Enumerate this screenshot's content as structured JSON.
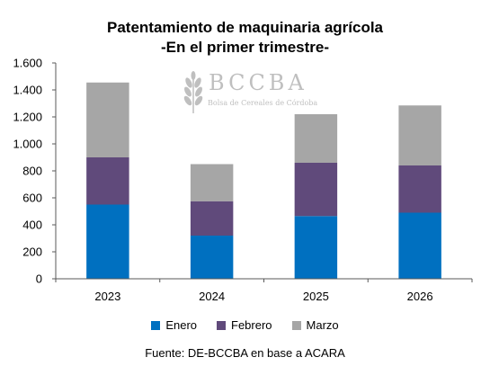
{
  "title_line1": "Patentamiento de maquinaria agrícola",
  "title_line2": "-En el primer trimestre-",
  "source": "Fuente: DE-BCCBA en base a ACARA",
  "watermark": {
    "logo_text": "BCCBA",
    "subtitle": "Bolsa de Cereales de Córdoba",
    "icon": "wheat-icon"
  },
  "colors": {
    "Enero": "#0070C0",
    "Febrero": "#604A7B",
    "Marzo": "#A6A6A6",
    "axis": "#595959",
    "text": "#000000"
  },
  "chart_data": {
    "type": "bar",
    "stacked": true,
    "title": "Patentamiento de maquinaria agrícola",
    "subtitle": "-En el primer trimestre-",
    "categories": [
      "2023",
      "2024",
      "2025",
      "2026"
    ],
    "series": [
      {
        "name": "Enero",
        "values": [
          550,
          320,
          465,
          490
        ]
      },
      {
        "name": "Febrero",
        "values": [
          350,
          255,
          395,
          350
        ]
      },
      {
        "name": "Marzo",
        "values": [
          555,
          275,
          360,
          445
        ]
      }
    ],
    "ylim": [
      0,
      1600
    ],
    "yticks": [
      0,
      200,
      400,
      600,
      800,
      1000,
      1200,
      1400,
      1600
    ],
    "ytick_labels": [
      "0",
      "200",
      "400",
      "600",
      "800",
      "1.000",
      "1.200",
      "1.400",
      "1.600"
    ],
    "legend_position": "bottom",
    "grid": false
  }
}
